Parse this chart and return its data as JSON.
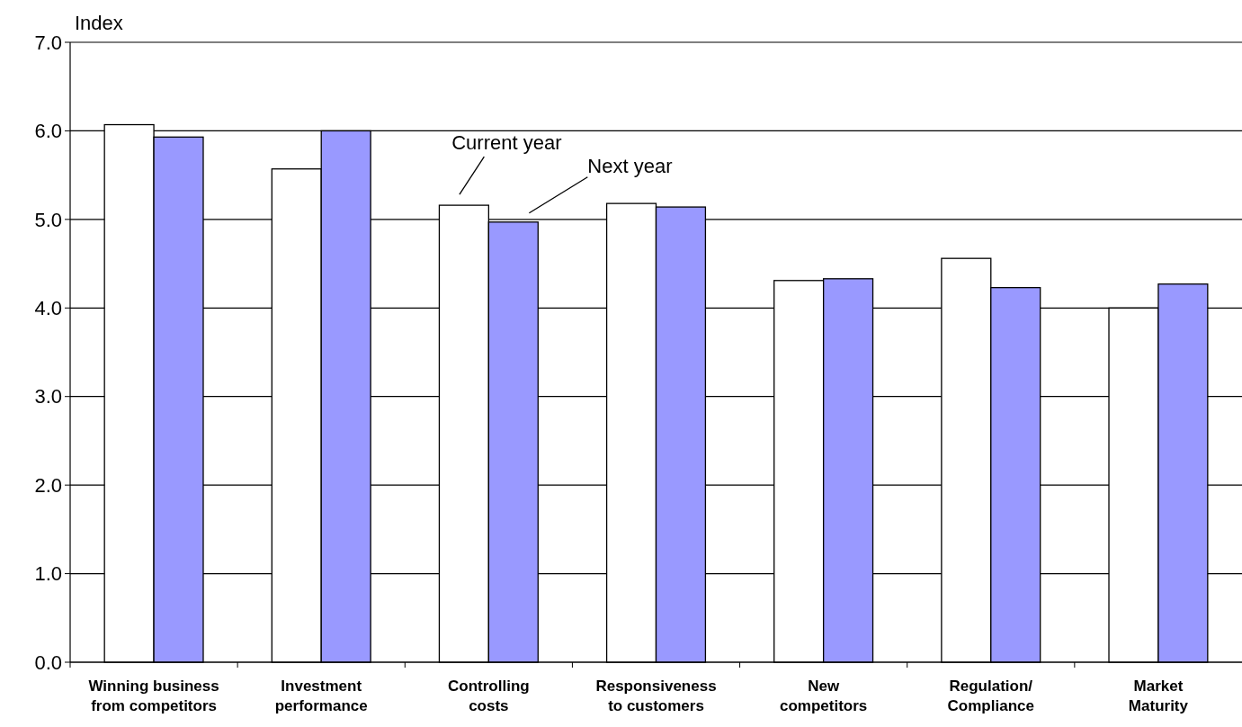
{
  "chart_data": {
    "type": "bar",
    "ylabel": "Index",
    "categories": [
      "Winning business\nfrom competitors",
      "Investment\nperformance",
      "Controlling\ncosts",
      "Responsiveness\nto customers",
      "New\ncompetitors",
      "Regulation/\nCompliance",
      "Market\nMaturity"
    ],
    "series": [
      {
        "name": "Current year",
        "color": "#ffffff",
        "values": [
          6.07,
          5.57,
          5.16,
          5.18,
          4.31,
          4.56,
          4.0
        ]
      },
      {
        "name": "Next year",
        "color": "#9999ff",
        "values": [
          5.93,
          6.0,
          4.97,
          5.14,
          4.33,
          4.23,
          4.27
        ]
      }
    ],
    "ylim": [
      0,
      7
    ],
    "yticks": [
      {
        "value": 0,
        "label": "0.0"
      },
      {
        "value": 1,
        "label": "1.0"
      },
      {
        "value": 2,
        "label": "2.0"
      },
      {
        "value": 3,
        "label": "3.0"
      },
      {
        "value": 4,
        "label": "4.0"
      },
      {
        "value": 5,
        "label": "5.0"
      },
      {
        "value": 6,
        "label": "6.0"
      },
      {
        "value": 7,
        "label": "7.0"
      }
    ],
    "grid": "y",
    "legend": false
  }
}
